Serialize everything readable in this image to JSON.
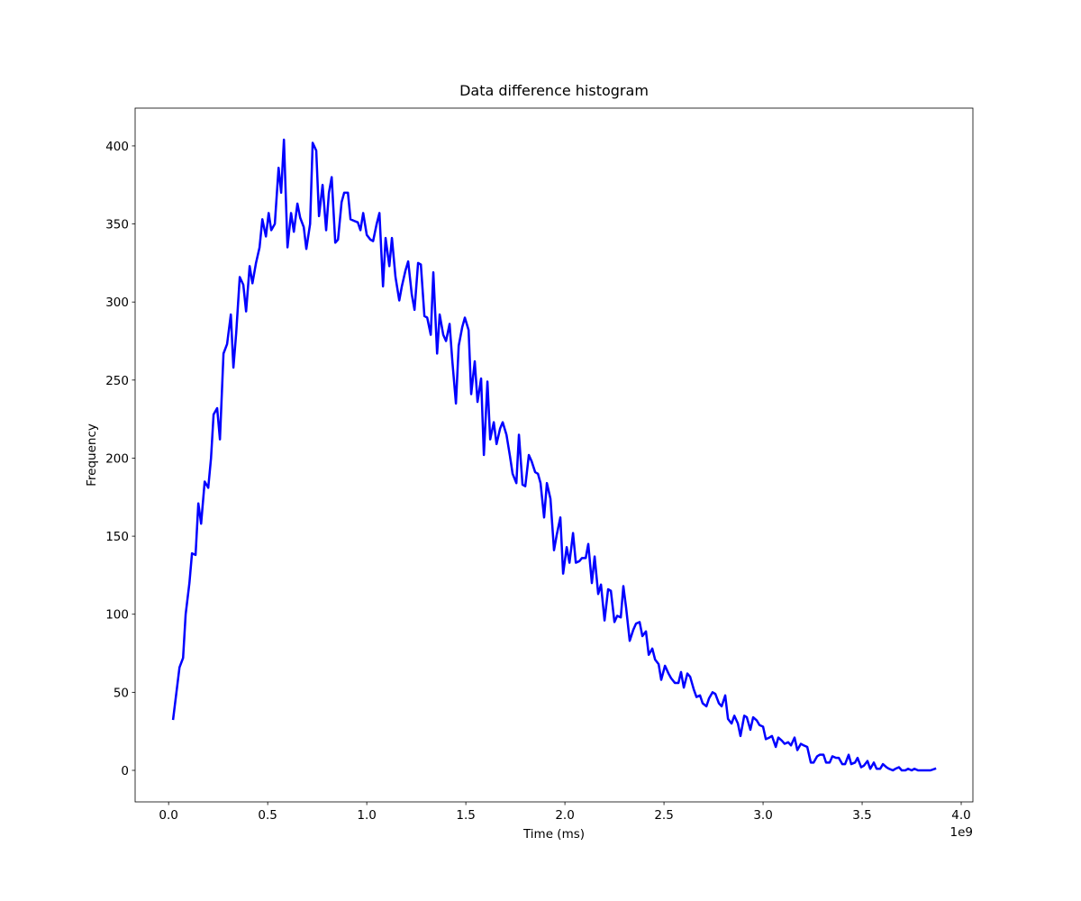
{
  "chart_data": {
    "type": "line",
    "title": "Data difference histogram",
    "x_label": "Time (ms)",
    "y_label": "Frequency",
    "x_offset_label": "1e9",
    "color": "#0000ff",
    "xlim": [
      -0.169,
      4.059
    ],
    "ylim": [
      -20.2,
      424.2
    ],
    "xticks": [
      {
        "value": 0,
        "label": "0.0"
      },
      0.5,
      {
        "value": 1,
        "label": "1.0"
      },
      1.5,
      {
        "value": 2,
        "label": "2.0"
      },
      2.5,
      {
        "value": 3,
        "label": "3.0"
      },
      3.5,
      {
        "value": 4,
        "label": "4.0"
      }
    ],
    "yticks": [
      0,
      50,
      100,
      150,
      200,
      250,
      300,
      350,
      400
    ],
    "x": [
      0.023,
      0.055,
      0.073,
      0.086,
      0.105,
      0.118,
      0.136,
      0.15,
      0.164,
      0.182,
      0.2,
      0.214,
      0.227,
      0.245,
      0.259,
      0.277,
      0.295,
      0.314,
      0.327,
      0.341,
      0.359,
      0.377,
      0.391,
      0.409,
      0.423,
      0.441,
      0.459,
      0.473,
      0.491,
      0.505,
      0.518,
      0.536,
      0.555,
      0.568,
      0.582,
      0.6,
      0.618,
      0.632,
      0.65,
      0.664,
      0.682,
      0.695,
      0.714,
      0.727,
      0.745,
      0.759,
      0.777,
      0.795,
      0.809,
      0.823,
      0.841,
      0.855,
      0.873,
      0.886,
      0.905,
      0.918,
      0.936,
      0.955,
      0.968,
      0.982,
      1.0,
      1.018,
      1.032,
      1.05,
      1.064,
      1.082,
      1.095,
      1.114,
      1.127,
      1.145,
      1.164,
      1.177,
      1.195,
      1.209,
      1.227,
      1.241,
      1.259,
      1.273,
      1.291,
      1.305,
      1.323,
      1.336,
      1.355,
      1.368,
      1.386,
      1.4,
      1.418,
      1.432,
      1.45,
      1.464,
      1.482,
      1.495,
      1.514,
      1.527,
      1.545,
      1.559,
      1.577,
      1.591,
      1.609,
      1.623,
      1.641,
      1.655,
      1.673,
      1.686,
      1.705,
      1.723,
      1.736,
      1.755,
      1.768,
      1.786,
      1.8,
      1.818,
      1.832,
      1.85,
      1.864,
      1.877,
      1.895,
      1.909,
      1.927,
      1.945,
      1.959,
      1.977,
      1.991,
      2.009,
      2.023,
      2.041,
      2.055,
      2.073,
      2.086,
      2.105,
      2.118,
      2.136,
      2.15,
      2.168,
      2.182,
      2.2,
      2.218,
      2.232,
      2.25,
      2.264,
      2.282,
      2.295,
      2.309,
      2.327,
      2.345,
      2.359,
      2.377,
      2.391,
      2.409,
      2.423,
      2.441,
      2.455,
      2.473,
      2.486,
      2.505,
      2.523,
      2.536,
      2.555,
      2.573,
      2.586,
      2.6,
      2.618,
      2.632,
      2.65,
      2.664,
      2.682,
      2.695,
      2.714,
      2.727,
      2.745,
      2.759,
      2.777,
      2.791,
      2.809,
      2.823,
      2.841,
      2.855,
      2.873,
      2.886,
      2.905,
      2.918,
      2.936,
      2.95,
      2.968,
      2.982,
      3.0,
      3.014,
      3.032,
      3.045,
      3.064,
      3.077,
      3.095,
      3.109,
      3.127,
      3.141,
      3.159,
      3.173,
      3.191,
      3.205,
      3.223,
      3.241,
      3.255,
      3.273,
      3.286,
      3.305,
      3.318,
      3.336,
      3.35,
      3.368,
      3.382,
      3.4,
      3.414,
      3.432,
      3.445,
      3.464,
      3.477,
      3.495,
      3.509,
      3.527,
      3.541,
      3.559,
      3.573,
      3.591,
      3.605,
      3.623,
      3.636,
      3.655,
      3.668,
      3.686,
      3.7,
      3.718,
      3.732,
      3.75,
      3.764,
      3.782,
      3.795,
      3.814,
      3.832,
      3.845,
      3.868
    ],
    "values": [
      33,
      66,
      72,
      100,
      120,
      139,
      138,
      171,
      158,
      185,
      181,
      200,
      228,
      232,
      212,
      267,
      273,
      292,
      258,
      280,
      316,
      311,
      294,
      323,
      312,
      325,
      335,
      353,
      342,
      357,
      346,
      350,
      386,
      370,
      404,
      335,
      357,
      345,
      363,
      354,
      348,
      334,
      350,
      402,
      397,
      355,
      375,
      346,
      370,
      380,
      338,
      340,
      364,
      370,
      370,
      353,
      352,
      351,
      346,
      357,
      343,
      340,
      339,
      350,
      357,
      310,
      341,
      323,
      341,
      316,
      301,
      310,
      320,
      326,
      305,
      295,
      325,
      324,
      291,
      290,
      279,
      319,
      267,
      292,
      279,
      275,
      286,
      262,
      235,
      272,
      284,
      290,
      282,
      241,
      262,
      236,
      251,
      202,
      249,
      212,
      223,
      209,
      219,
      223,
      215,
      201,
      190,
      184,
      215,
      183,
      182,
      202,
      198,
      191,
      190,
      184,
      162,
      184,
      174,
      141,
      151,
      162,
      126,
      143,
      133,
      152,
      133,
      134,
      136,
      136,
      145,
      120,
      137,
      113,
      119,
      96,
      116,
      115,
      95,
      99,
      98,
      118,
      104,
      83,
      90,
      94,
      95,
      86,
      89,
      74,
      78,
      71,
      68,
      58,
      67,
      62,
      59,
      56,
      56,
      63,
      53,
      62,
      60,
      52,
      47,
      48,
      43,
      41,
      46,
      50,
      49,
      43,
      41,
      48,
      33,
      30,
      35,
      30,
      22,
      35,
      34,
      26,
      34,
      32,
      29,
      28,
      20,
      21,
      22,
      15,
      21,
      19,
      17,
      18,
      16,
      21,
      13,
      17,
      16,
      15,
      5,
      5,
      9,
      10,
      10,
      5,
      5,
      9,
      8,
      8,
      4,
      4,
      10,
      4,
      5,
      8,
      2,
      3,
      6,
      1,
      5,
      1,
      1,
      4,
      2,
      1,
      0,
      1,
      2,
      0,
      0,
      1,
      0,
      1,
      0,
      0,
      0,
      0,
      0,
      1
    ]
  }
}
